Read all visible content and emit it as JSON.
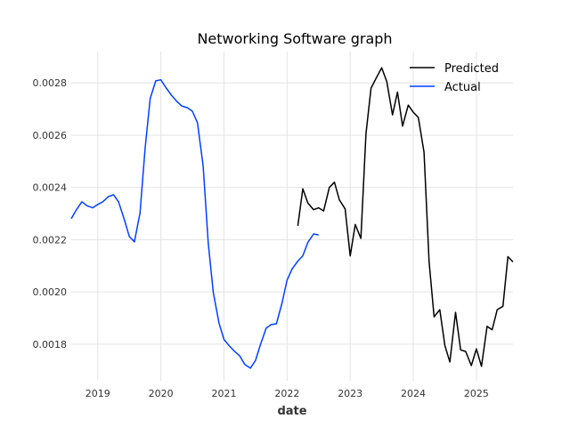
{
  "chart_data": {
    "type": "line",
    "title": "Networking Software graph",
    "xlabel": "date",
    "ylabel": "",
    "x_ticks": [
      "2019",
      "2020",
      "2021",
      "2022",
      "2023",
      "2024",
      "2025"
    ],
    "y_ticks": [
      "0.0018",
      "0.0020",
      "0.0022",
      "0.0024",
      "0.0026",
      "0.0028"
    ],
    "xlim": [
      2018.58,
      2025.58
    ],
    "ylim": [
      0.00166,
      0.00292
    ],
    "grid": true,
    "legend_position": "top-right",
    "series": [
      {
        "name": "Predicted",
        "color": "#000000",
        "points": [
          [
            2022.17,
            0.002253
          ],
          [
            2022.25,
            0.002395
          ],
          [
            2022.33,
            0.00234
          ],
          [
            2022.42,
            0.002315
          ],
          [
            2022.5,
            0.002322
          ],
          [
            2022.58,
            0.00231
          ],
          [
            2022.67,
            0.0024
          ],
          [
            2022.75,
            0.00242
          ],
          [
            2022.83,
            0.002352
          ],
          [
            2022.92,
            0.002318
          ],
          [
            2023.0,
            0.002138
          ],
          [
            2023.08,
            0.002258
          ],
          [
            2023.17,
            0.002205
          ],
          [
            2023.25,
            0.002605
          ],
          [
            2023.33,
            0.00278
          ],
          [
            2023.42,
            0.002822
          ],
          [
            2023.5,
            0.002858
          ],
          [
            2023.58,
            0.002805
          ],
          [
            2023.67,
            0.002678
          ],
          [
            2023.75,
            0.002765
          ],
          [
            2023.83,
            0.002635
          ],
          [
            2023.92,
            0.002715
          ],
          [
            2024.0,
            0.002688
          ],
          [
            2024.08,
            0.002668
          ],
          [
            2024.17,
            0.002535
          ],
          [
            2024.25,
            0.002115
          ],
          [
            2024.33,
            0.001905
          ],
          [
            2024.42,
            0.001932
          ],
          [
            2024.5,
            0.001795
          ],
          [
            2024.58,
            0.001732
          ],
          [
            2024.67,
            0.001922
          ],
          [
            2024.75,
            0.001778
          ],
          [
            2024.83,
            0.001772
          ],
          [
            2024.92,
            0.001718
          ],
          [
            2025.0,
            0.001782
          ],
          [
            2025.08,
            0.001715
          ],
          [
            2025.17,
            0.001868
          ],
          [
            2025.25,
            0.001855
          ],
          [
            2025.33,
            0.001932
          ],
          [
            2025.42,
            0.001945
          ],
          [
            2025.5,
            0.002135
          ],
          [
            2025.58,
            0.002115
          ]
        ]
      },
      {
        "name": "Actual",
        "color": "#0040ff",
        "points": [
          [
            2018.58,
            0.00228
          ],
          [
            2018.67,
            0.002318
          ],
          [
            2018.75,
            0.002345
          ],
          [
            2018.83,
            0.00233
          ],
          [
            2018.92,
            0.002322
          ],
          [
            2019.0,
            0.002335
          ],
          [
            2019.08,
            0.002345
          ],
          [
            2019.17,
            0.002365
          ],
          [
            2019.25,
            0.002372
          ],
          [
            2019.33,
            0.002345
          ],
          [
            2019.42,
            0.002278
          ],
          [
            2019.5,
            0.002212
          ],
          [
            2019.58,
            0.002192
          ],
          [
            2019.67,
            0.002302
          ],
          [
            2019.75,
            0.002548
          ],
          [
            2019.83,
            0.00274
          ],
          [
            2019.92,
            0.002808
          ],
          [
            2020.0,
            0.002812
          ],
          [
            2020.08,
            0.002782
          ],
          [
            2020.17,
            0.002752
          ],
          [
            2020.25,
            0.00273
          ],
          [
            2020.33,
            0.002712
          ],
          [
            2020.42,
            0.002705
          ],
          [
            2020.5,
            0.002692
          ],
          [
            2020.58,
            0.002648
          ],
          [
            2020.67,
            0.002482
          ],
          [
            2020.75,
            0.002188
          ],
          [
            2020.83,
            0.002
          ],
          [
            2020.92,
            0.001882
          ],
          [
            2021.0,
            0.001818
          ],
          [
            2021.08,
            0.001795
          ],
          [
            2021.17,
            0.001772
          ],
          [
            2021.25,
            0.001755
          ],
          [
            2021.33,
            0.001722
          ],
          [
            2021.42,
            0.001708
          ],
          [
            2021.5,
            0.001738
          ],
          [
            2021.58,
            0.0018
          ],
          [
            2021.67,
            0.001862
          ],
          [
            2021.75,
            0.001875
          ],
          [
            2021.83,
            0.001878
          ],
          [
            2021.92,
            0.001958
          ],
          [
            2022.0,
            0.002045
          ],
          [
            2022.08,
            0.002088
          ],
          [
            2022.17,
            0.002118
          ],
          [
            2022.25,
            0.002138
          ],
          [
            2022.33,
            0.00219
          ],
          [
            2022.42,
            0.002222
          ],
          [
            2022.5,
            0.002218
          ]
        ]
      }
    ]
  }
}
